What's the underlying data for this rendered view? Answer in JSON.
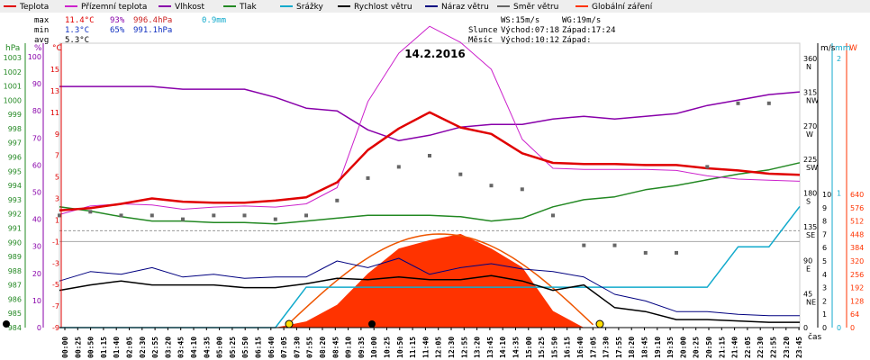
{
  "chart_data": {
    "type": "line",
    "title": "14.2.2016",
    "xlabel": "čas",
    "legend": [
      {
        "label": "Teplota",
        "color": "#e00000"
      },
      {
        "label": "Přízemní teplota",
        "color": "#cc22cc"
      },
      {
        "label": "Vlhkost",
        "color": "#8800aa"
      },
      {
        "label": "Tlak",
        "color": "#228822"
      },
      {
        "label": "Srážky",
        "color": "#11aacc"
      },
      {
        "label": "Rychlost větru",
        "color": "#000000"
      },
      {
        "label": "Náraz větru",
        "color": "#000080"
      },
      {
        "label": "Směr větru",
        "color": "#666666"
      },
      {
        "label": "Globální záření",
        "color": "#ff3300"
      }
    ],
    "stats": {
      "max_label": "max",
      "max_temp": "11.4°C",
      "max_hum": "93%",
      "max_press": "996.4hPa",
      "max_rain": "0.9mm",
      "min_label": "min",
      "min_temp": "1.3°C",
      "min_hum": "65%",
      "min_press": "991.1hPa",
      "avg_label": "avg",
      "avg_temp": "5.3°C",
      "ws": "WS:15m/s",
      "wg": "WG:19m/s",
      "sun_label": "Slunce",
      "sunrise": "Východ:07:18",
      "sunset": "Západ:17:24",
      "moon_label": "Měsíc",
      "moonrise": "Východ:10:12",
      "moonset": "Západ:"
    },
    "axes": {
      "hpa_unit": "hPa",
      "hum_unit": "%",
      "temp_unit": "°C",
      "wind_unit": "m/s",
      "rain_unit": "mm",
      "rad_unit": "W",
      "hpa_ticks": [
        "1003",
        "1002",
        "1001",
        "1000",
        "999",
        "998",
        "997",
        "996",
        "995",
        "994",
        "993",
        "992",
        "991",
        "990",
        "989",
        "988",
        "987",
        "986",
        "985",
        "984"
      ],
      "hum_ticks": [
        "100",
        "90",
        "80",
        "70",
        "60",
        "50",
        "40",
        "30",
        "20",
        "10",
        "0"
      ],
      "temp_ticks": [
        "15",
        "13",
        "11",
        "9",
        "7",
        "5",
        "3",
        "1",
        "-1",
        "-3",
        "-5",
        "-7",
        "-9"
      ],
      "dir_ticks": [
        {
          "v": "360",
          "s": "N"
        },
        {
          "v": "315",
          "s": "NW"
        },
        {
          "v": "270",
          "s": "W"
        },
        {
          "v": "225",
          "s": "SW"
        },
        {
          "v": "180",
          "s": "S"
        },
        {
          "v": "135",
          "s": "SE"
        },
        {
          "v": "90",
          "s": "E"
        },
        {
          "v": "45",
          "s": "NE"
        },
        {
          "v": "0",
          "s": ""
        }
      ],
      "wind_ticks": [
        "10",
        "9",
        "8",
        "7",
        "6",
        "5",
        "4",
        "3",
        "2",
        "1",
        "0"
      ],
      "rain_ticks": [
        "2",
        "1",
        "0"
      ],
      "rad_ticks": [
        "640",
        "576",
        "512",
        "448",
        "384",
        "320",
        "256",
        "192",
        "128",
        "64",
        "0"
      ],
      "x_ticks": [
        "00:00",
        "00:25",
        "00:50",
        "01:15",
        "01:40",
        "02:05",
        "02:30",
        "02:55",
        "03:20",
        "03:45",
        "04:10",
        "04:35",
        "05:00",
        "05:25",
        "05:50",
        "06:15",
        "06:40",
        "07:05",
        "07:30",
        "07:55",
        "08:20",
        "08:45",
        "09:10",
        "09:35",
        "10:00",
        "10:25",
        "10:50",
        "11:15",
        "11:40",
        "12:05",
        "12:30",
        "12:55",
        "13:20",
        "13:45",
        "14:10",
        "14:35",
        "15:00",
        "15:25",
        "15:50",
        "16:15",
        "16:40",
        "17:05",
        "17:30",
        "17:55",
        "18:20",
        "18:45",
        "19:10",
        "19:35",
        "20:00",
        "20:25",
        "20:50",
        "21:15",
        "21:40",
        "22:05",
        "22:30",
        "22:55",
        "23:20",
        "23:45"
      ]
    },
    "series_hourly": {
      "hours": [
        0,
        1,
        2,
        3,
        4,
        5,
        6,
        7,
        8,
        9,
        10,
        11,
        12,
        13,
        14,
        15,
        16,
        17,
        18,
        19,
        20,
        21,
        22,
        23,
        24
      ],
      "temperature": [
        1.9,
        2.1,
        2.5,
        3.0,
        2.7,
        2.6,
        2.6,
        2.8,
        3.1,
        4.5,
        7.5,
        9.5,
        11.0,
        9.6,
        9.0,
        7.2,
        6.3,
        6.2,
        6.2,
        6.1,
        6.1,
        5.8,
        5.6,
        5.3,
        5.2
      ],
      "ground_temperature": [
        1.5,
        2.3,
        2.5,
        2.4,
        2.0,
        2.2,
        2.3,
        2.2,
        2.5,
        4.0,
        12.0,
        16.5,
        19.0,
        17.5,
        15.0,
        8.5,
        5.8,
        5.7,
        5.7,
        5.7,
        5.6,
        5.1,
        4.8,
        4.7,
        4.6
      ],
      "humidity": [
        89,
        89,
        89,
        89,
        88,
        88,
        88,
        85,
        81,
        80,
        73,
        69,
        71,
        74,
        75,
        75,
        77,
        78,
        77,
        78,
        79,
        82,
        84,
        86,
        87
      ],
      "pressure": [
        992.5,
        992.2,
        991.8,
        991.5,
        991.5,
        991.4,
        991.4,
        991.3,
        991.5,
        991.7,
        991.9,
        991.9,
        991.9,
        991.8,
        991.5,
        991.7,
        992.5,
        993.0,
        993.2,
        993.7,
        994.0,
        994.4,
        994.8,
        995.1,
        995.6
      ],
      "wind_speed": [
        2.8,
        3.2,
        3.5,
        3.2,
        3.2,
        3.2,
        3.0,
        3.0,
        3.3,
        3.7,
        3.6,
        3.8,
        3.6,
        3.6,
        3.9,
        3.5,
        2.8,
        3.2,
        1.5,
        1.2,
        0.6,
        0.6,
        0.5,
        0.4,
        0.4
      ],
      "wind_gust": [
        3.5,
        4.2,
        4.0,
        4.5,
        3.8,
        4.0,
        3.7,
        3.8,
        3.8,
        5.0,
        4.5,
        5.2,
        4.0,
        4.5,
        4.8,
        4.4,
        4.2,
        3.8,
        2.5,
        2.0,
        1.2,
        1.2,
        1.0,
        0.9,
        0.9
      ],
      "wind_direction": [
        150,
        155,
        150,
        150,
        145,
        150,
        150,
        145,
        150,
        170,
        200,
        215,
        230,
        205,
        190,
        185,
        150,
        110,
        110,
        100,
        100,
        215,
        300,
        300,
        310
      ],
      "rain": [
        0,
        0,
        0,
        0,
        0,
        0,
        0,
        0,
        0.3,
        0.3,
        0.3,
        0.3,
        0.3,
        0.3,
        0.3,
        0.3,
        0.3,
        0.3,
        0.3,
        0.3,
        0.3,
        0.3,
        0.6,
        0.6,
        0.9
      ],
      "radiation": [
        0,
        0,
        0,
        0,
        0,
        0,
        0,
        0,
        30,
        110,
        260,
        380,
        420,
        450,
        380,
        290,
        80,
        0,
        0,
        0,
        0,
        0,
        0,
        0,
        0
      ]
    }
  }
}
